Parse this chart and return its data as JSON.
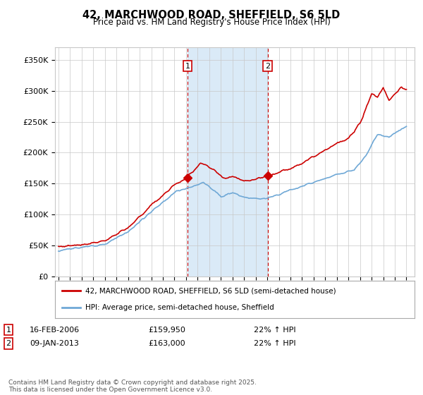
{
  "title_line1": "42, MARCHWOOD ROAD, SHEFFIELD, S6 5LD",
  "title_line2": "Price paid vs. HM Land Registry's House Price Index (HPI)",
  "hpi_color": "#6fa8d6",
  "price_color": "#cc0000",
  "annotation_line_color": "#cc0000",
  "shaded_region_color": "#daeaf7",
  "background_color": "#ffffff",
  "grid_color": "#c8c8c8",
  "ylim": [
    0,
    370000
  ],
  "yticks": [
    0,
    50000,
    100000,
    150000,
    200000,
    250000,
    300000,
    350000
  ],
  "ytick_labels": [
    "£0",
    "£50K",
    "£100K",
    "£150K",
    "£200K",
    "£250K",
    "£300K",
    "£350K"
  ],
  "ann1_x": 2006.12,
  "ann1_price": 159950,
  "ann1_label": "1",
  "ann1_date": "16-FEB-2006",
  "ann1_price_str": "£159,950",
  "ann1_hpi": "22% ↑ HPI",
  "ann2_x": 2013.03,
  "ann2_price": 163000,
  "ann2_label": "2",
  "ann2_date": "09-JAN-2013",
  "ann2_price_str": "£163,000",
  "ann2_hpi": "22% ↑ HPI",
  "legend_line1": "42, MARCHWOOD ROAD, SHEFFIELD, S6 5LD (semi-detached house)",
  "legend_line2": "HPI: Average price, semi-detached house, Sheffield",
  "footnote": "Contains HM Land Registry data © Crown copyright and database right 2025.\nThis data is licensed under the Open Government Licence v3.0.",
  "xmin": 1994.7,
  "xmax": 2025.7
}
